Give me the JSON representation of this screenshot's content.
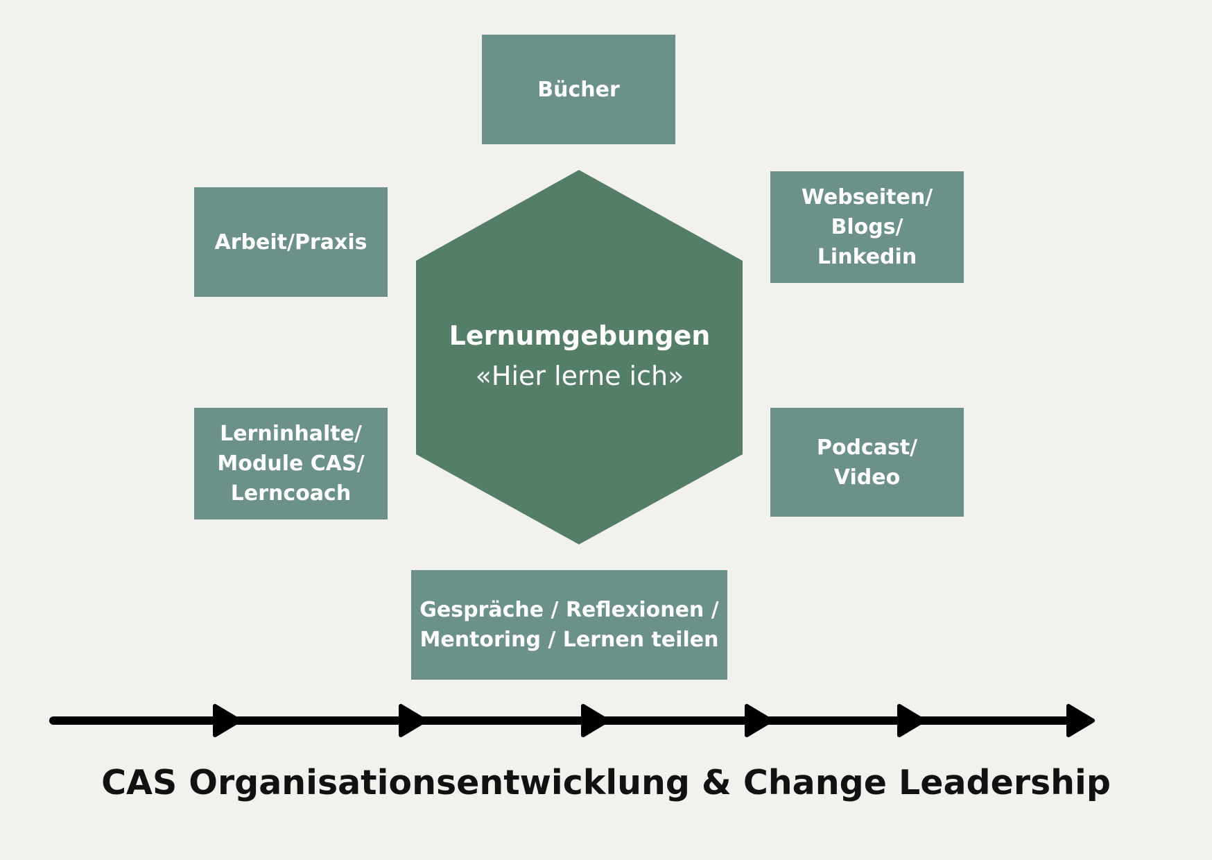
{
  "colors": {
    "background": "#f3f1ed",
    "box": "#6c918b",
    "hexagon": "#547e67",
    "box_text": "#ffffff",
    "arrow": "#000000",
    "footer_text": "#111111"
  },
  "center": {
    "title": "Lernumgebungen",
    "subtitle": "«Hier lerne ich»"
  },
  "boxes": {
    "buecher": [
      "Bücher"
    ],
    "webseiten": [
      "Webseiten/",
      "Blogs/",
      "Linkedin"
    ],
    "arbeit": [
      "Arbeit/Praxis"
    ],
    "lerninhalte": [
      "Lerninhalte/",
      "Module CAS/",
      "Lerncoach"
    ],
    "podcast": [
      "Podcast/",
      "Video"
    ],
    "gespraeche": [
      "Gespräche / Reflexionen /",
      "Mentoring / Lernen teilen"
    ]
  },
  "footer": {
    "title": "CAS Organisationsentwicklung & Change Leadership"
  }
}
